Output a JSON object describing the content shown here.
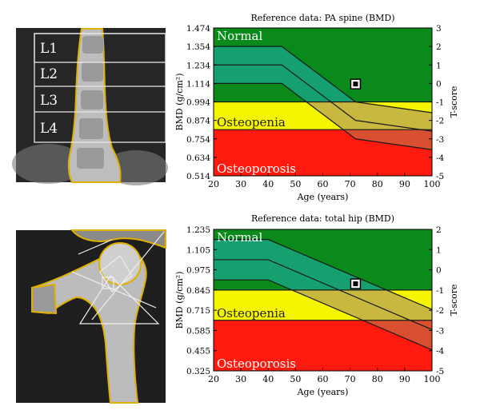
{
  "spine_image": {
    "vertebra_labels": [
      "L1",
      "L2",
      "L3",
      "L4"
    ]
  },
  "colors": {
    "normal": "#0a8a1a",
    "normal_band": "#16a070",
    "osteopenia": "#f5f500",
    "osteopenia_band": "#c8b840",
    "osteoporosis": "#ff1a10",
    "osteoporosis_band": "#d85030",
    "outline": "#e0b000",
    "zone_text": "#ffffff",
    "zone_text_dark": "#222222"
  },
  "chart_data": [
    {
      "type": "area",
      "title": "Reference data: PA spine (BMD)",
      "xlabel": "Age (years)",
      "ylabel": "BMD (g/cm²)",
      "y2label": "T-score",
      "xlim": [
        20,
        100
      ],
      "ylim": [
        0.514,
        1.474
      ],
      "xticks": [
        "20",
        "30",
        "40",
        "50",
        "60",
        "70",
        "80",
        "90",
        "100"
      ],
      "yticks": [
        "1.474",
        "1.354",
        "1.234",
        "1.114",
        "0.994",
        "0.874",
        "0.754",
        "0.634",
        "0.514"
      ],
      "y2ticks": [
        "3",
        "2",
        "1",
        "0",
        "-1",
        "-2",
        "-3",
        "-4",
        "-5"
      ],
      "zones": [
        {
          "name": "Normal",
          "from": 0.994,
          "to": 1.474
        },
        {
          "name": "Osteopenia",
          "from": 0.814,
          "to": 0.994
        },
        {
          "name": "Osteoporosis",
          "from": 0.514,
          "to": 0.814
        }
      ],
      "reference_curves": {
        "upper": {
          "x": [
            20,
            45,
            72,
            100
          ],
          "y": [
            1.354,
            1.354,
            0.994,
            0.924
          ]
        },
        "mean": {
          "x": [
            20,
            45,
            72,
            100
          ],
          "y": [
            1.234,
            1.234,
            0.874,
            0.804
          ]
        },
        "lower": {
          "x": [
            20,
            45,
            72,
            100
          ],
          "y": [
            1.114,
            1.114,
            0.754,
            0.684
          ]
        }
      },
      "patient_point": {
        "x": 72,
        "y": 1.11
      }
    },
    {
      "type": "area",
      "title": "Reference data: total hip (BMD)",
      "xlabel": "Age (years)",
      "ylabel": "BMD (g/cm²)",
      "y2label": "T-score",
      "xlim": [
        20,
        100
      ],
      "ylim": [
        0.325,
        1.235
      ],
      "xticks": [
        "20",
        "30",
        "40",
        "50",
        "60",
        "70",
        "80",
        "90",
        "100"
      ],
      "yticks": [
        "1.235",
        "1.105",
        "0.975",
        "0.845",
        "0.715",
        "0.585",
        "0.455",
        "0.325"
      ],
      "y2ticks": [
        "2",
        "1",
        "0",
        "-1",
        "-2",
        "-3",
        "-4",
        "-5"
      ],
      "zones": [
        {
          "name": "Normal",
          "from": 0.845,
          "to": 1.235
        },
        {
          "name": "Osteopenia",
          "from": 0.65,
          "to": 0.845
        },
        {
          "name": "Osteoporosis",
          "from": 0.325,
          "to": 0.65
        }
      ],
      "reference_curves": {
        "upper": {
          "x": [
            20,
            40,
            100
          ],
          "y": [
            1.17,
            1.17,
            0.72
          ]
        },
        "mean": {
          "x": [
            20,
            40,
            100
          ],
          "y": [
            1.04,
            1.04,
            0.59
          ]
        },
        "lower": {
          "x": [
            20,
            40,
            100
          ],
          "y": [
            0.91,
            0.91,
            0.46
          ]
        }
      },
      "patient_point": {
        "x": 72,
        "y": 0.885
      }
    }
  ]
}
